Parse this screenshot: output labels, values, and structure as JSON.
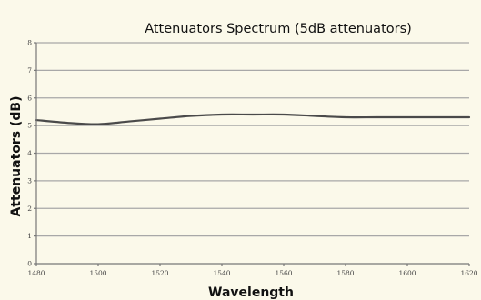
{
  "chart_data": {
    "type": "line",
    "title": "Attenuators Spectrum (5dB attenuators)",
    "xlabel": "Wavelength",
    "ylabel": "Attenuators (dB)",
    "xlim": [
      1480,
      1620
    ],
    "ylim": [
      0,
      8
    ],
    "x_ticks": [
      "1480",
      "1500",
      "1520",
      "1540",
      "1560",
      "1580",
      "1600",
      "1620"
    ],
    "y_ticks": [
      "0",
      "1",
      "2",
      "3",
      "4",
      "5",
      "6",
      "7",
      "8"
    ],
    "grid": true,
    "legend": "none",
    "series": [
      {
        "color": "#4a4a4a",
        "x": [
          1480,
          1490,
          1500,
          1510,
          1520,
          1530,
          1540,
          1550,
          1560,
          1570,
          1580,
          1590,
          1600,
          1610,
          1620
        ],
        "y": [
          5.2,
          5.1,
          5.05,
          5.15,
          5.25,
          5.35,
          5.4,
          5.4,
          5.4,
          5.35,
          5.3,
          5.3,
          5.3,
          5.3,
          5.3
        ]
      }
    ]
  }
}
